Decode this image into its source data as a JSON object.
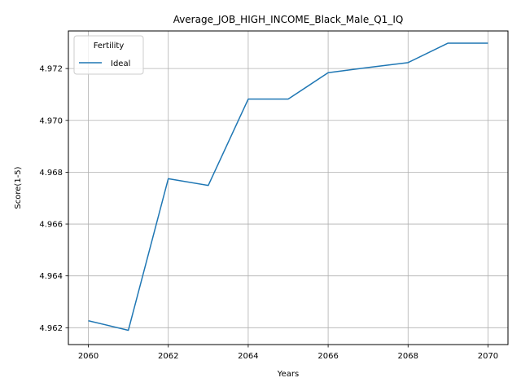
{
  "chart_data": {
    "type": "line",
    "title": "Average_JOB_HIGH_INCOME_Black_Male_Q1_IQ",
    "xlabel": "Years",
    "ylabel": "Score(1-5)",
    "xlim": [
      2059.5,
      2070.5
    ],
    "ylim": [
      4.96135,
      4.97345
    ],
    "xticks": [
      2060,
      2062,
      2064,
      2066,
      2068,
      2070
    ],
    "xtick_labels": [
      "2060",
      "2062",
      "2064",
      "2066",
      "2068",
      "2070"
    ],
    "yticks": [
      4.962,
      4.964,
      4.966,
      4.968,
      4.97,
      4.972
    ],
    "ytick_labels": [
      "4.962",
      "4.964",
      "4.966",
      "4.968",
      "4.970",
      "4.972"
    ],
    "grid": true,
    "legend": {
      "title": "Fertility",
      "position": "top-left"
    },
    "series": [
      {
        "name": "Ideal",
        "color": "#1f77b4",
        "x": [
          2060,
          2061,
          2062,
          2063,
          2064,
          2065,
          2066,
          2067,
          2068,
          2069,
          2070
        ],
        "y": [
          4.96227,
          4.9619,
          4.96775,
          4.96749,
          4.97082,
          4.97082,
          4.97184,
          4.97204,
          4.97223,
          4.97298,
          4.97298
        ]
      }
    ]
  }
}
